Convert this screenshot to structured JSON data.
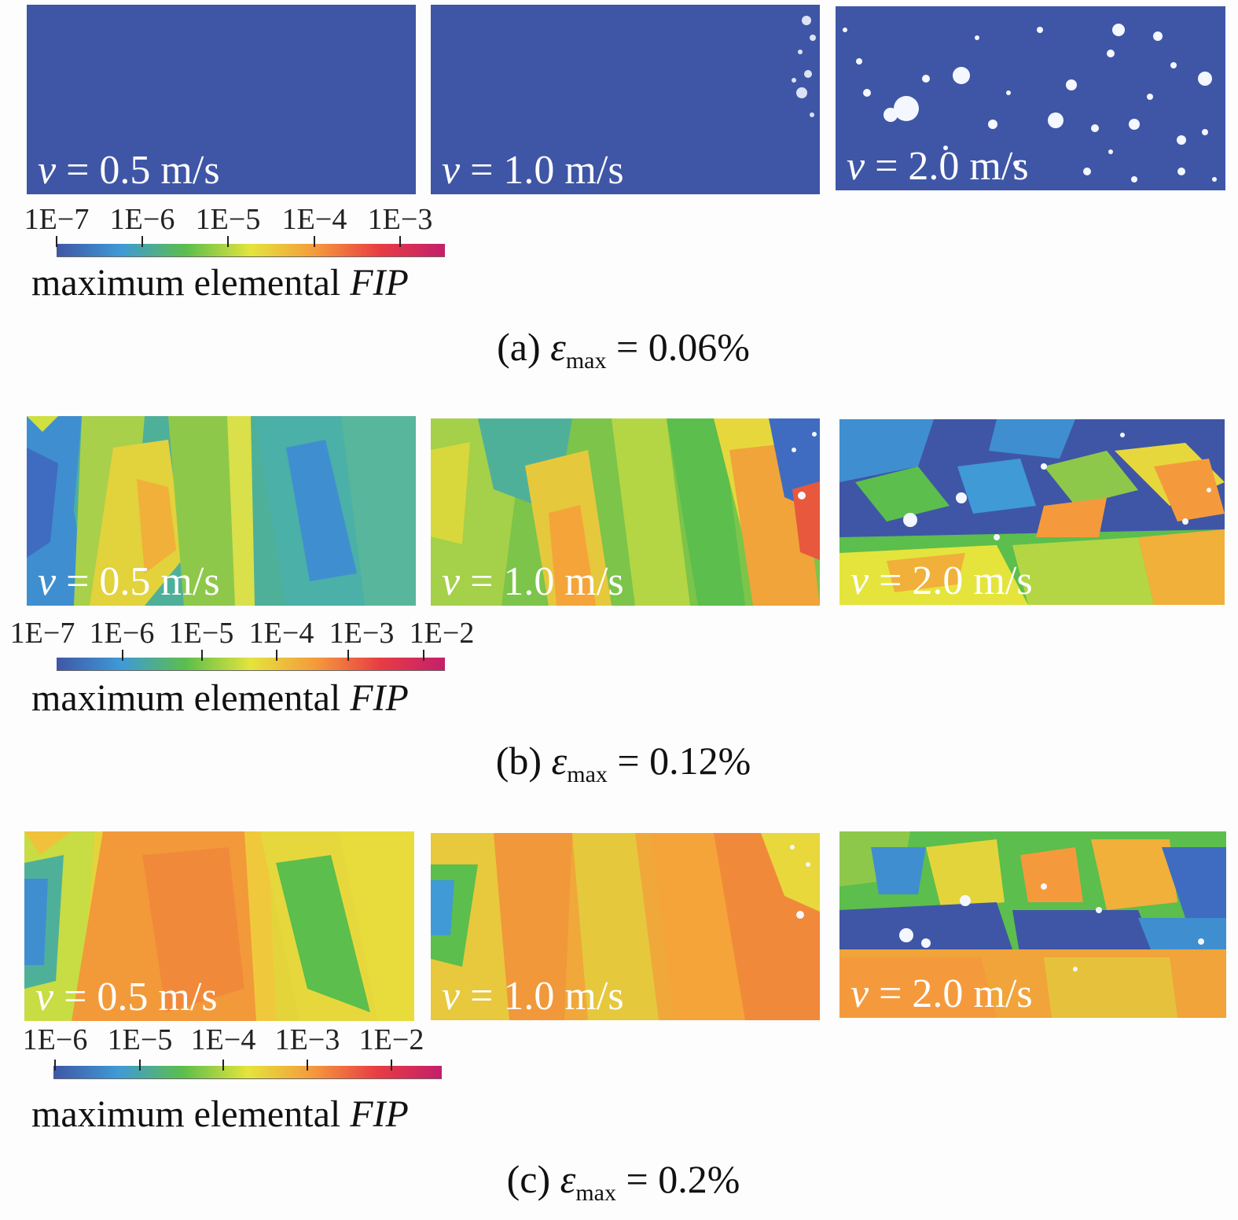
{
  "colors": {
    "blue": "#3f56a6",
    "cyan": "#3f9ad6",
    "green": "#5cbe4c",
    "yellow": "#e4e43c",
    "orange": "#f59a3c",
    "red": "#e83c44",
    "magenta": "#c41f6b"
  },
  "colorbar": {
    "label_prefix": "maximum elemental ",
    "label_var": "FIP",
    "colormap": [
      "#3f56a6",
      "#3f9ad6",
      "#5cbe4c",
      "#e4e43c",
      "#f59a3c",
      "#e83c44",
      "#c41f6b"
    ]
  },
  "rows": [
    {
      "caption_prefix": "(a) ",
      "caption_symbol": "ε",
      "caption_sub": "max",
      "caption_value": " = 0.06%",
      "ticks": [
        "1E−7",
        "1E−6",
        "1E−5",
        "1E−4",
        "1E−3"
      ],
      "panels": [
        {
          "var": "v",
          "text": " = 0.5 m/s",
          "fill_level": 0.0
        },
        {
          "var": "v",
          "text": " = 1.0 m/s",
          "fill_level": 0.02
        },
        {
          "var": "v",
          "text": " = 2.0 m/s",
          "fill_level": 0.08
        }
      ]
    },
    {
      "caption_prefix": "(b) ",
      "caption_symbol": "ε",
      "caption_sub": "max",
      "caption_value": " = 0.12%",
      "ticks": [
        "1E−7",
        "1E−6",
        "1E−5",
        "1E−4",
        "1E−3",
        "1E−2"
      ],
      "panels": [
        {
          "var": "v",
          "text": " = 0.5 m/s",
          "fill_level": 0.35
        },
        {
          "var": "v",
          "text": " = 1.0 m/s",
          "fill_level": 0.5
        },
        {
          "var": "v",
          "text": " = 2.0 m/s",
          "fill_level": 0.3
        }
      ]
    },
    {
      "caption_prefix": "(c) ",
      "caption_symbol": "ε",
      "caption_sub": "max",
      "caption_value": " = 0.2%",
      "ticks": [
        "1E−6",
        "1E−5",
        "1E−4",
        "1E−3",
        "1E−2"
      ],
      "panels": [
        {
          "var": "v",
          "text": " = 0.5 m/s",
          "fill_level": 0.55
        },
        {
          "var": "v",
          "text": " = 1.0 m/s",
          "fill_level": 0.65
        },
        {
          "var": "v",
          "text": " = 2.0 m/s",
          "fill_level": 0.5
        }
      ]
    }
  ]
}
